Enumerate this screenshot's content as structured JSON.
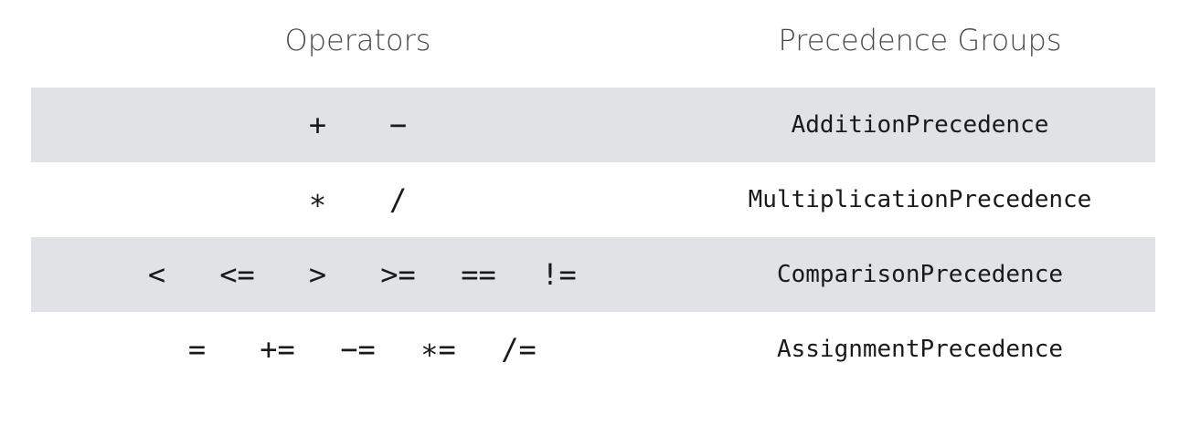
{
  "headers": {
    "operators": "Operators",
    "groups": "Precedence Groups"
  },
  "rows": [
    {
      "operators": [
        "+",
        "−"
      ],
      "group": "AdditionPrecedence",
      "shaded": true
    },
    {
      "operators": [
        "∗",
        "/"
      ],
      "group": "MultiplicationPrecedence",
      "shaded": false
    },
    {
      "operators": [
        "<",
        "<=",
        ">",
        ">=",
        "==",
        "!="
      ],
      "group": "ComparisonPrecedence",
      "shaded": true
    },
    {
      "operators": [
        "=",
        "+=",
        "−=",
        "∗=",
        "/="
      ],
      "group": "AssignmentPrecedence",
      "shaded": false
    }
  ],
  "colors": {
    "shaded_row": "#e1e2e6",
    "header_text": "#4a4a4a",
    "body_text": "#1a1a1a"
  }
}
